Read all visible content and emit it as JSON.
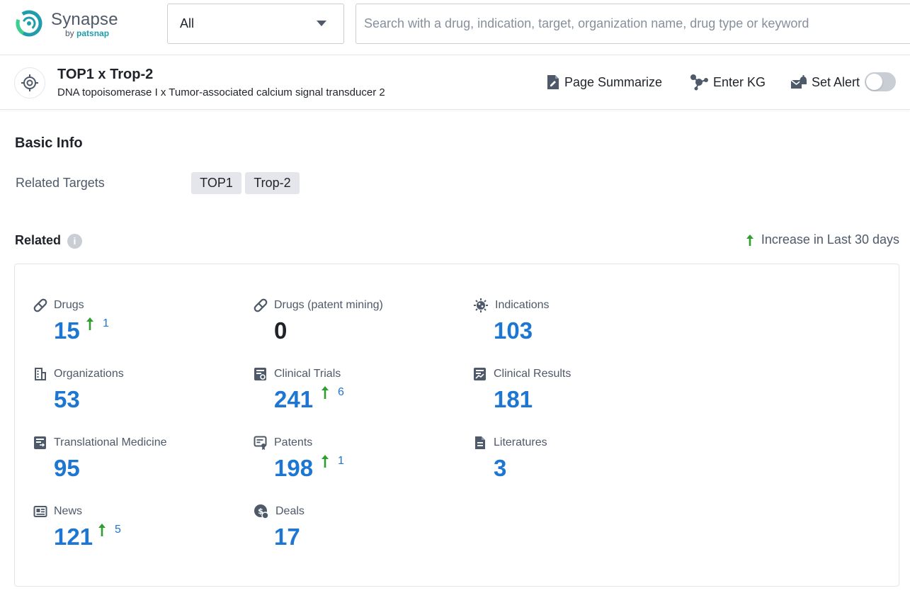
{
  "header": {
    "logo_name": "Synapse",
    "logo_by": "by",
    "logo_brand": "patsnap",
    "scope_value": "All",
    "search_placeholder": "Search with a drug, indication, target, organization name, drug type or keyword"
  },
  "entity": {
    "title": "TOP1 x Trop-2",
    "subtitle": "DNA topoisomerase I x Tumor-associated calcium signal transducer 2",
    "actions": {
      "summarize": "Page Summarize",
      "kg": "Enter KG",
      "alert": "Set Alert"
    },
    "alert_enabled": false
  },
  "basic_info": {
    "title": "Basic Info",
    "related_targets_label": "Related Targets",
    "related_targets": [
      "TOP1",
      "Trop-2"
    ]
  },
  "related": {
    "title": "Related",
    "legend": "Increase in Last 30 days",
    "colors": {
      "value": "#1c76d2",
      "increase_arrow": "#2f9e2f",
      "zero": "#1f2329"
    },
    "stats": [
      {
        "label": "Drugs",
        "value": "15",
        "increase": "1",
        "icon": "pill-icon"
      },
      {
        "label": "Drugs (patent mining)",
        "value": "0",
        "increase": "",
        "icon": "pill-icon"
      },
      {
        "label": "Indications",
        "value": "103",
        "increase": "",
        "icon": "virus-icon"
      },
      {
        "label": "Organizations",
        "value": "53",
        "increase": "",
        "icon": "building-icon"
      },
      {
        "label": "Clinical Trials",
        "value": "241",
        "increase": "6",
        "icon": "clinical-trial-icon"
      },
      {
        "label": "Clinical Results",
        "value": "181",
        "increase": "",
        "icon": "chart-document-icon"
      },
      {
        "label": "Translational Medicine",
        "value": "95",
        "increase": "",
        "icon": "translational-medicine-icon"
      },
      {
        "label": "Patents",
        "value": "198",
        "increase": "1",
        "icon": "patent-icon"
      },
      {
        "label": "Literatures",
        "value": "3",
        "increase": "",
        "icon": "document-icon"
      },
      {
        "label": "News",
        "value": "121",
        "increase": "5",
        "icon": "newspaper-icon"
      },
      {
        "label": "Deals",
        "value": "17",
        "increase": "",
        "icon": "deal-icon"
      }
    ]
  }
}
